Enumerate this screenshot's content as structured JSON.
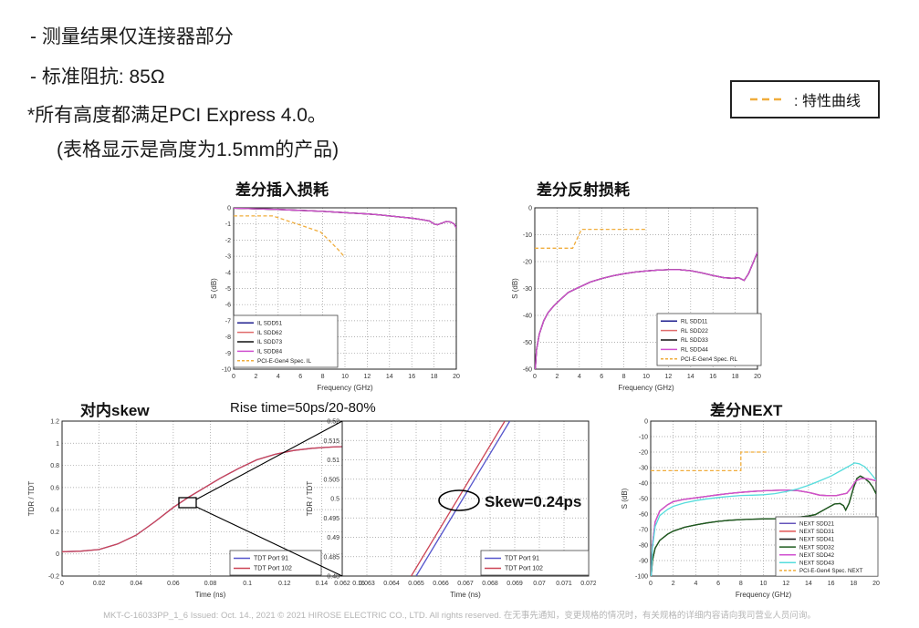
{
  "notes": {
    "line1": "- 测量结果仅连接器部分",
    "line2": "- 标准阻抗: 85Ω",
    "line3": "*所有高度都满足PCI Express 4.0。",
    "line4": "(表格显示是高度为1.5mm的产品)"
  },
  "spec_legend": {
    "label": ": 特性曲线",
    "color": "#f0ad3c"
  },
  "annotations": {
    "rise_time": "Rise time=50ps/20-80%",
    "skew": "Skew=0.24ps"
  },
  "footer": {
    "text": "MKT-C-16033PP_1_6    Issued: Oct. 14., 2021    © 2021 HIROSE ELECTRIC CO., LTD. All rights reserved.    在无事先通知，变更规格的情况时，有关规格的详细内容请向我司营业人员问询。"
  },
  "point_sets": {
    "il_main": [
      [
        0,
        -0.02
      ],
      [
        2,
        -0.06
      ],
      [
        4,
        -0.1
      ],
      [
        6,
        -0.16
      ],
      [
        8,
        -0.22
      ],
      [
        10,
        -0.3
      ],
      [
        12,
        -0.38
      ],
      [
        13,
        -0.43
      ],
      [
        14,
        -0.5
      ],
      [
        15,
        -0.57
      ],
      [
        16,
        -0.64
      ],
      [
        17,
        -0.74
      ],
      [
        17.6,
        -0.82
      ],
      [
        18,
        -1.0
      ],
      [
        18.3,
        -1.05
      ],
      [
        18.7,
        -0.95
      ],
      [
        19.1,
        -0.85
      ],
      [
        19.5,
        -0.88
      ],
      [
        19.8,
        -1.0
      ],
      [
        20,
        -1.25
      ]
    ],
    "il_spec": [
      [
        0,
        -0.5
      ],
      [
        3.5,
        -0.5
      ],
      [
        5.7,
        -1.0
      ],
      [
        7.8,
        -1.5
      ],
      [
        8.7,
        -2.1
      ],
      [
        9.4,
        -2.6
      ],
      [
        9.9,
        -3.0
      ]
    ],
    "rl_main": [
      [
        0.05,
        -60
      ],
      [
        0.15,
        -53
      ],
      [
        0.4,
        -47
      ],
      [
        0.8,
        -42
      ],
      [
        1.2,
        -39
      ],
      [
        1.7,
        -36.5
      ],
      [
        2.2,
        -34.5
      ],
      [
        3,
        -31.5
      ],
      [
        4,
        -29.5
      ],
      [
        5,
        -27.6
      ],
      [
        6,
        -26.3
      ],
      [
        7,
        -25.3
      ],
      [
        8,
        -24.5
      ],
      [
        9,
        -23.9
      ],
      [
        10,
        -23.5
      ],
      [
        11,
        -23.2
      ],
      [
        12,
        -23
      ],
      [
        13,
        -23
      ],
      [
        14,
        -23.4
      ],
      [
        15,
        -24.2
      ],
      [
        16,
        -25.2
      ],
      [
        17,
        -26
      ],
      [
        17.8,
        -26.2
      ],
      [
        18.3,
        -26
      ],
      [
        18.8,
        -27
      ],
      [
        19.2,
        -24.5
      ],
      [
        19.6,
        -20.5
      ],
      [
        20,
        -16.5
      ]
    ],
    "rl_spec": [
      [
        0,
        -15
      ],
      [
        3.4,
        -15
      ],
      [
        4.2,
        -8
      ],
      [
        10,
        -8
      ]
    ],
    "skew_main": [
      [
        0,
        0.02
      ],
      [
        0.01,
        0.025
      ],
      [
        0.02,
        0.04
      ],
      [
        0.03,
        0.09
      ],
      [
        0.04,
        0.17
      ],
      [
        0.05,
        0.29
      ],
      [
        0.06,
        0.42
      ],
      [
        0.068,
        0.51
      ],
      [
        0.075,
        0.58
      ],
      [
        0.085,
        0.68
      ],
      [
        0.095,
        0.77
      ],
      [
        0.105,
        0.85
      ],
      [
        0.115,
        0.9
      ],
      [
        0.125,
        0.935
      ],
      [
        0.135,
        0.955
      ],
      [
        0.145,
        0.965
      ],
      [
        0.155,
        0.972
      ],
      [
        0.16,
        0.975
      ]
    ],
    "inset_91": [
      [
        0.065,
        0.48
      ],
      [
        0.0688,
        0.52
      ]
    ],
    "inset_102": [
      [
        0.0648,
        0.48
      ],
      [
        0.0686,
        0.52
      ]
    ],
    "next_upper": [
      [
        0.05,
        -100
      ],
      [
        0.15,
        -80
      ],
      [
        0.4,
        -65
      ],
      [
        0.8,
        -58
      ],
      [
        1.5,
        -54
      ],
      [
        2,
        -52
      ],
      [
        3,
        -50.5
      ],
      [
        4,
        -49.5
      ],
      [
        5,
        -48.5
      ],
      [
        6,
        -47.5
      ],
      [
        7,
        -46.7
      ],
      [
        8,
        -46
      ],
      [
        9,
        -45.4
      ],
      [
        10,
        -45
      ],
      [
        11,
        -44.7
      ],
      [
        12,
        -44.5
      ],
      [
        13,
        -44.8
      ],
      [
        14,
        -46
      ],
      [
        15,
        -47.8
      ],
      [
        16,
        -48.2
      ],
      [
        16.5,
        -48
      ],
      [
        17,
        -47.2
      ],
      [
        17.4,
        -46.6
      ],
      [
        17.8,
        -43
      ],
      [
        18.2,
        -38.5
      ],
      [
        18.7,
        -37
      ],
      [
        19.2,
        -37.2
      ],
      [
        19.6,
        -37.8
      ],
      [
        20,
        -38.5
      ]
    ],
    "next_cyan": [
      [
        0.05,
        -100
      ],
      [
        0.15,
        -82
      ],
      [
        0.4,
        -68
      ],
      [
        0.8,
        -61
      ],
      [
        1.5,
        -57
      ],
      [
        2,
        -55
      ],
      [
        3,
        -52.8
      ],
      [
        4,
        -51.3
      ],
      [
        5,
        -50.2
      ],
      [
        6,
        -49.3
      ],
      [
        7,
        -48.6
      ],
      [
        8,
        -48
      ],
      [
        9,
        -47.8
      ],
      [
        10,
        -47.5
      ],
      [
        11,
        -46.8
      ],
      [
        12,
        -45.5
      ],
      [
        13,
        -43.8
      ],
      [
        14,
        -41.5
      ],
      [
        15,
        -38.5
      ],
      [
        16,
        -35.5
      ],
      [
        17,
        -31.5
      ],
      [
        17.6,
        -29
      ],
      [
        18.1,
        -27
      ],
      [
        18.5,
        -27.5
      ],
      [
        19,
        -29.5
      ],
      [
        19.5,
        -33.5
      ],
      [
        20,
        -38
      ]
    ],
    "next_green": [
      [
        0.05,
        -100
      ],
      [
        0.15,
        -90
      ],
      [
        0.4,
        -82
      ],
      [
        0.8,
        -77
      ],
      [
        1.5,
        -73
      ],
      [
        2,
        -71
      ],
      [
        3,
        -68.5
      ],
      [
        4,
        -67
      ],
      [
        5,
        -65.7
      ],
      [
        6,
        -64.7
      ],
      [
        7,
        -64
      ],
      [
        8,
        -63.6
      ],
      [
        9,
        -63.3
      ],
      [
        10,
        -63.1
      ],
      [
        11,
        -63
      ],
      [
        12,
        -62.8
      ],
      [
        13,
        -62.2
      ],
      [
        14,
        -61.2
      ],
      [
        14.6,
        -60.4
      ],
      [
        15.2,
        -58
      ],
      [
        15.8,
        -55.5
      ],
      [
        16.3,
        -53.5
      ],
      [
        16.8,
        -53.2
      ],
      [
        17.1,
        -54.5
      ],
      [
        17.3,
        -57.5
      ],
      [
        17.6,
        -53
      ],
      [
        18,
        -43
      ],
      [
        18.3,
        -37
      ],
      [
        18.6,
        -35.5
      ],
      [
        19,
        -37
      ],
      [
        19.4,
        -39.5
      ],
      [
        19.7,
        -42.5
      ],
      [
        20,
        -47
      ]
    ],
    "next_spec": [
      [
        0,
        -32
      ],
      [
        8,
        -32
      ],
      [
        8,
        -20
      ],
      [
        10.4,
        -20
      ]
    ]
  },
  "chart_data": [
    {
      "id": "il",
      "type": "line",
      "title": "差分插入损耗",
      "xlabel": "Frequency (GHz)",
      "ylabel": "S (dB)",
      "xlim": [
        0,
        20
      ],
      "ylim": [
        -10,
        0
      ],
      "x_ticks": [
        0,
        2,
        4,
        6,
        8,
        10,
        12,
        14,
        16,
        18,
        20
      ],
      "y_ticks": [
        0,
        -1,
        -2,
        -3,
        -4,
        -5,
        -6,
        -7,
        -8,
        -9,
        -10
      ],
      "grid": true,
      "legend_pos": "bottom-left",
      "series": [
        {
          "name": "IL SDD51",
          "color": "#1f1f8f",
          "dash": false,
          "points": "il_main"
        },
        {
          "name": "IL SDD62",
          "color": "#e06c6c",
          "dash": false,
          "points": "il_main"
        },
        {
          "name": "IL SDD73",
          "color": "#111111",
          "dash": false,
          "points": "il_main"
        },
        {
          "name": "IL SDD84",
          "color": "#d050d0",
          "dash": false,
          "points": "il_main"
        },
        {
          "name": "PCI-E-Gen4 Spec. IL",
          "color": "#f0ad3c",
          "dash": true,
          "points": "il_spec"
        }
      ]
    },
    {
      "id": "rl",
      "type": "line",
      "title": "差分反射损耗",
      "xlabel": "Frequency (GHz)",
      "ylabel": "S (dB)",
      "xlim": [
        0,
        20
      ],
      "ylim": [
        -60,
        0
      ],
      "x_ticks": [
        0,
        2,
        4,
        6,
        8,
        10,
        12,
        14,
        16,
        18,
        20
      ],
      "y_ticks": [
        0,
        -10,
        -20,
        -30,
        -40,
        -50,
        -60
      ],
      "grid": true,
      "legend_pos": "bottom-right",
      "series": [
        {
          "name": "RL SDD11",
          "color": "#1f1f8f",
          "dash": false,
          "points": "rl_main"
        },
        {
          "name": "RL SDD22",
          "color": "#e06c6c",
          "dash": false,
          "points": "rl_main"
        },
        {
          "name": "RL SDD33",
          "color": "#111111",
          "dash": false,
          "points": "rl_main"
        },
        {
          "name": "RL SDD44",
          "color": "#d050d0",
          "dash": false,
          "points": "rl_main"
        },
        {
          "name": "PCI-E-Gen4 Spec. RL",
          "color": "#f0ad3c",
          "dash": true,
          "points": "rl_spec"
        }
      ]
    },
    {
      "id": "skew",
      "type": "line",
      "title": "对内skew",
      "xlabel": "Time (ns)",
      "ylabel": "TDR / TDT",
      "xlim": [
        0,
        0.16
      ],
      "ylim": [
        -0.2,
        1.2
      ],
      "x_ticks": [
        0,
        0.02,
        0.04,
        0.06,
        0.08,
        0.1,
        0.12,
        0.14,
        0.16
      ],
      "y_ticks": [
        -0.2,
        0,
        0.2,
        0.4,
        0.6,
        0.8,
        1,
        1.2
      ],
      "grid": true,
      "legend_pos": "bottom-right",
      "series": [
        {
          "name": "TDT Port 91",
          "color": "#5555cc",
          "dash": false,
          "points": "skew_main"
        },
        {
          "name": "TDT Port 102",
          "color": "#cc4455",
          "dash": false,
          "points": "skew_main"
        }
      ]
    },
    {
      "id": "inset",
      "type": "line",
      "title": "",
      "xlabel": "Time (ns)",
      "ylabel": "TDR / TDT",
      "xlim": [
        0.062,
        0.072
      ],
      "ylim": [
        0.48,
        0.52
      ],
      "x_ticks": [
        0.062,
        0.063,
        0.064,
        0.065,
        0.066,
        0.067,
        0.068,
        0.069,
        0.07,
        0.071,
        0.072
      ],
      "y_ticks": [
        0.48,
        0.485,
        0.49,
        0.495,
        0.5,
        0.505,
        0.51,
        0.515,
        0.52
      ],
      "grid": true,
      "legend_pos": "bottom-right",
      "series": [
        {
          "name": "TDT Port 91",
          "color": "#5555cc",
          "dash": false,
          "points": "inset_91"
        },
        {
          "name": "TDT Port 102",
          "color": "#cc4455",
          "dash": false,
          "points": "inset_102"
        }
      ]
    },
    {
      "id": "next",
      "type": "line",
      "title": "差分NEXT",
      "xlabel": "Frequency (GHz)",
      "ylabel": "S (dB)",
      "xlim": [
        0,
        20
      ],
      "ylim": [
        -100,
        0
      ],
      "x_ticks": [
        0,
        2,
        4,
        6,
        8,
        10,
        12,
        14,
        16,
        18,
        20
      ],
      "y_ticks": [
        0,
        -10,
        -20,
        -30,
        -40,
        -50,
        -60,
        -70,
        -80,
        -90,
        -100
      ],
      "grid": true,
      "legend_pos": "bottom-right",
      "series": [
        {
          "name": "NEXT SDD21",
          "color": "#6655bb",
          "dash": false,
          "points": "next_upper"
        },
        {
          "name": "NEXT SDD31",
          "color": "#e05555",
          "dash": false,
          "points": "next_upper"
        },
        {
          "name": "NEXT SDD41",
          "color": "#111111",
          "dash": false,
          "points": "next_green"
        },
        {
          "name": "NEXT SDD32",
          "color": "#1e5c1e",
          "dash": false,
          "points": "next_green"
        },
        {
          "name": "NEXT SDD42",
          "color": "#d050d0",
          "dash": false,
          "points": "next_upper"
        },
        {
          "name": "NEXT SDD43",
          "color": "#55dcdc",
          "dash": false,
          "points": "next_cyan"
        },
        {
          "name": "PCI-E-Gen4 Spec. NEXT",
          "color": "#f0ad3c",
          "dash": true,
          "points": "next_spec"
        }
      ]
    }
  ]
}
